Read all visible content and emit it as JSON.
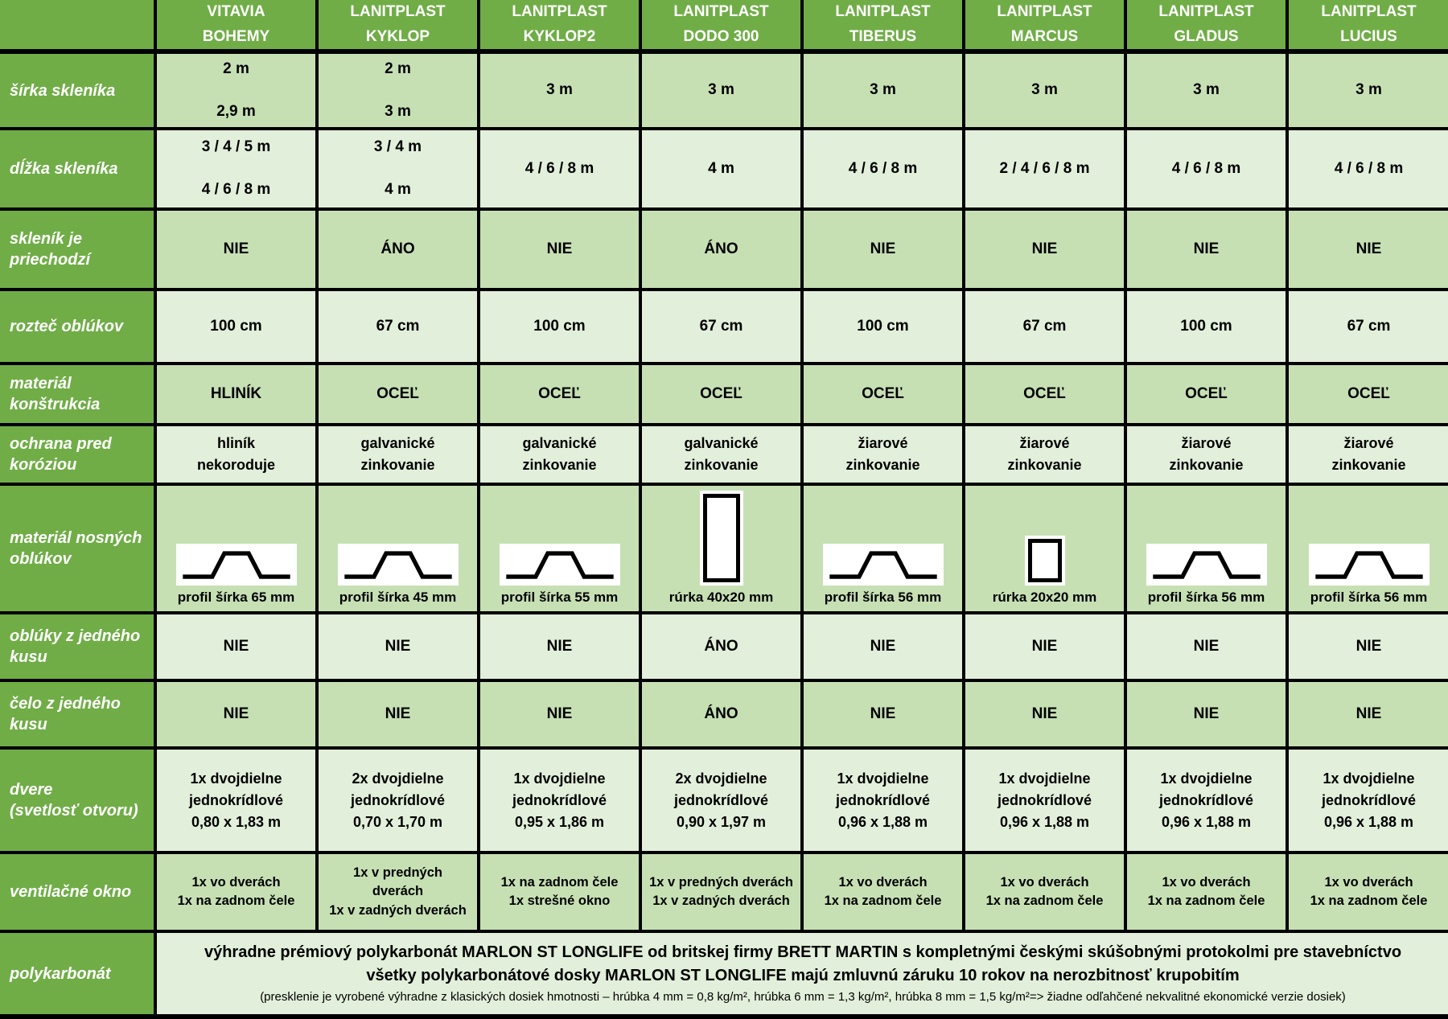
{
  "table": {
    "header": {
      "corner": "",
      "columns": [
        "VITAVIA\nBOHEMY",
        "LANITPLAST\nKYKLOP",
        "LANITPLAST\nKYKLOP2",
        "LANITPLAST\nDODO 300",
        "LANITPLAST\nTIBERUS",
        "LANITPLAST\nMARCUS",
        "LANITPLAST\nGLADUS",
        "LANITPLAST\nLUCIUS"
      ]
    },
    "rows": [
      {
        "id": "sirka",
        "label": "šírka skleníka",
        "type": "values",
        "cells": [
          "2 m\n\n2,9 m",
          "2 m\n\n3 m",
          "3 m",
          "3 m",
          "3 m",
          "3 m",
          "3 m",
          "3 m"
        ]
      },
      {
        "id": "dlzka",
        "label": "dĺžka skleníka",
        "type": "values",
        "cells": [
          "3 / 4 / 5 m\n\n4 / 6 / 8 m",
          "3 / 4 m\n\n4 m",
          "4 / 6 / 8 m",
          "4 m",
          "4 / 6 / 8 m",
          "2 / 4 / 6 / 8 m",
          "4 / 6 / 8 m",
          "4 / 6 / 8 m"
        ]
      },
      {
        "id": "priechodzi",
        "label": "skleník je\npriechodzí",
        "type": "values",
        "cells": [
          "NIE",
          "ÁNO",
          "NIE",
          "ÁNO",
          "NIE",
          "NIE",
          "NIE",
          "NIE"
        ]
      },
      {
        "id": "roztec",
        "label": "rozteč oblúkov",
        "type": "values",
        "cells": [
          "100 cm",
          "67 cm",
          "100 cm",
          "67 cm",
          "100 cm",
          "67 cm",
          "100 cm",
          "67 cm"
        ]
      },
      {
        "id": "material",
        "label": "materiál\nkonštrukcia",
        "type": "values",
        "cells": [
          "HLINÍK",
          "OCEĽ",
          "OCEĽ",
          "OCEĽ",
          "OCEĽ",
          "OCEĽ",
          "OCEĽ",
          "OCEĽ"
        ]
      },
      {
        "id": "ochrana",
        "label": "ochrana pred\nkoróziou",
        "type": "values",
        "cells": [
          "hliník\nnekoroduje",
          "galvanické\nzinkovanie",
          "galvanické\nzinkovanie",
          "galvanické\nzinkovanie",
          "žiarové\nzinkovanie",
          "žiarové\nzinkovanie",
          "žiarové\nzinkovanie",
          "žiarové\nzinkovanie"
        ]
      },
      {
        "id": "profil",
        "label": "materiál nosných\noblúkov",
        "type": "profile",
        "cells": [
          {
            "shape": "hat-profile",
            "caption": "profil šírka 65 mm"
          },
          {
            "shape": "hat-profile",
            "caption": "profil šírka 45 mm"
          },
          {
            "shape": "hat-profile",
            "caption": "profil šírka 55 mm"
          },
          {
            "shape": "tube-tall",
            "caption": "rúrka 40x20 mm"
          },
          {
            "shape": "hat-profile",
            "caption": "profil šírka 56 mm"
          },
          {
            "shape": "tube-small",
            "caption": "rúrka 20x20 mm"
          },
          {
            "shape": "hat-profile",
            "caption": "profil šírka 56 mm"
          },
          {
            "shape": "hat-profile",
            "caption": "profil šírka 56 mm"
          }
        ]
      },
      {
        "id": "obluky",
        "label": "oblúky z jedného\nkusu",
        "type": "values",
        "cells": [
          "NIE",
          "NIE",
          "NIE",
          "ÁNO",
          "NIE",
          "NIE",
          "NIE",
          "NIE"
        ]
      },
      {
        "id": "celo",
        "label": "čelo z jedného kusu",
        "type": "values",
        "cells": [
          "NIE",
          "NIE",
          "NIE",
          "ÁNO",
          "NIE",
          "NIE",
          "NIE",
          "NIE"
        ]
      },
      {
        "id": "dvere",
        "label": "dvere\n(svetlosť otvoru)",
        "type": "values",
        "cells": [
          "1x dvojdielne\njednokrídlové\n0,80 x 1,83 m",
          "2x dvojdielne\njednokrídlové\n0,70 x 1,70 m",
          "1x dvojdielne\njednokrídlové\n0,95 x 1,86 m",
          "2x dvojdielne\njednokrídlové\n0,90 x 1,97 m",
          "1x dvojdielne\njednokrídlové\n0,96 x 1,88 m",
          "1x dvojdielne\njednokrídlové\n0,96 x 1,88 m",
          "1x dvojdielne\njednokrídlové\n0,96 x 1,88 m",
          "1x dvojdielne\njednokrídlové\n0,96 x 1,88 m"
        ]
      },
      {
        "id": "okno",
        "label": "ventilačné okno",
        "type": "values",
        "cells": [
          "1x vo dverách\n1x na zadnom čele",
          "1x v predných\ndverách\n1x v zadných dverách",
          "1x na zadnom čele\n1x strešné okno",
          "1x v predných dverách\n1x v zadných dverách",
          "1x vo dverách\n1x na zadnom čele",
          "1x vo dverách\n1x na zadnom čele",
          "1x vo dverách\n1x na zadnom čele",
          "1x vo dverách\n1x na zadnom čele"
        ]
      },
      {
        "id": "polykarbonat",
        "label": "polykarbonát",
        "type": "span",
        "lines": [
          "výhradne prémiový polykarbonát MARLON ST LONGLIFE od britskej firmy BRETT MARTIN s kompletnými českými skúšobnými protokolmi pre stavebníctvo",
          "všetky polykarbonátové dosky MARLON ST LONGLIFE majú zmluvnú záruku 10 rokov na nerozbitnosť krupobitím",
          "(presklenie je vyrobené výhradne z klasických dosiek hmotnosti – hrúbka 4 mm = 0,8 kg/m², hrúbka 6 mm = 1,3 kg/m², hrúbka 8 mm = 1,5 kg/m²=> žiadne odľahčené nekvalitné ekonomické verzie dosiek)"
        ]
      }
    ],
    "colors": {
      "header_green": "#70ad47",
      "row_dark": "#c6e0b4",
      "row_light": "#e2efda",
      "border": "#000000",
      "label_text": "#ffffff",
      "value_text": "#000000"
    }
  }
}
